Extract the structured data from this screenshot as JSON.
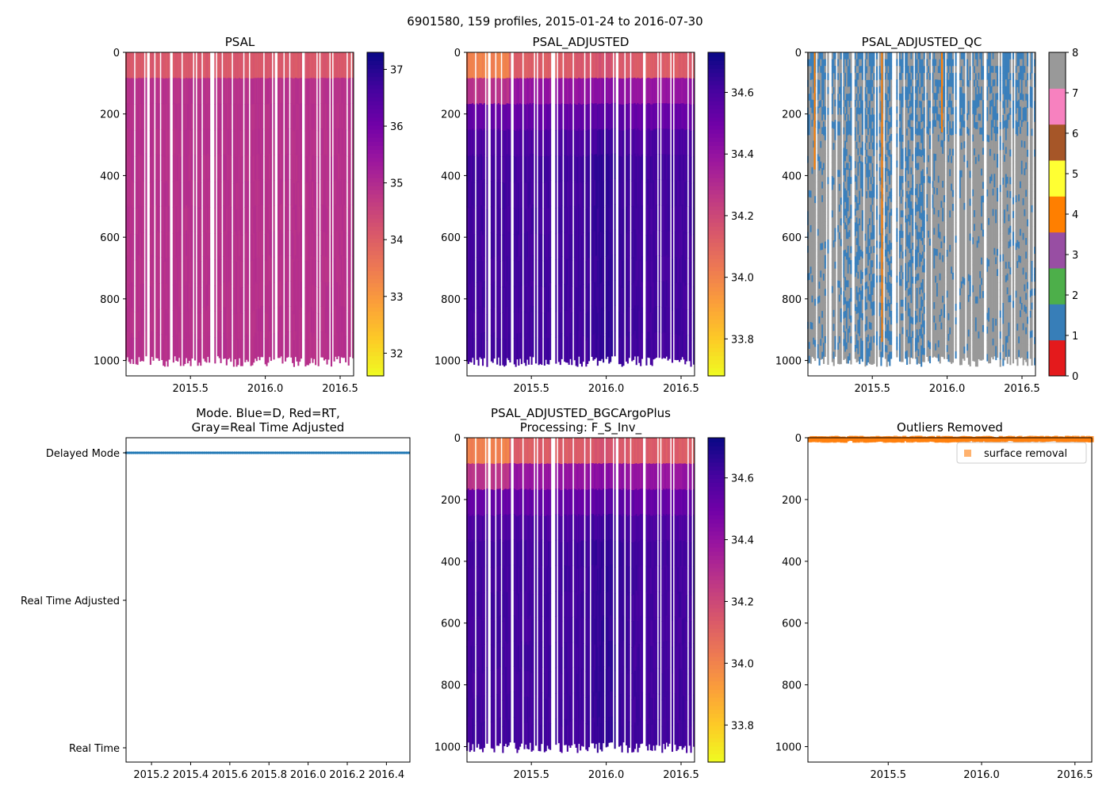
{
  "figure": {
    "suptitle": "6901580, 159 profiles, 2015-01-24 to 2016-07-30"
  },
  "colors": {
    "plasma": [
      "#0d0887",
      "#46039f",
      "#7201a8",
      "#9c179e",
      "#bd3786",
      "#d8576b",
      "#ed7953",
      "#fb9f3a",
      "#fdca26",
      "#f0f921"
    ],
    "qc": [
      "#e41a1c",
      "#377eb8",
      "#4daf4a",
      "#984ea3",
      "#ff7f00",
      "#ffff33",
      "#a65628",
      "#f781bf",
      "#999999"
    ],
    "qc_good": "#3a7fbb",
    "qc_missing": "#999999",
    "mode_dot": "#1f77b4",
    "outlier": "#ff7f0e"
  },
  "chart_data": [
    {
      "id": "psal",
      "type": "heatmap",
      "title": "PSAL",
      "xlim": [
        2015.07,
        2016.59
      ],
      "ylim": [
        1050,
        0
      ],
      "xticks": [
        "2015.5",
        "2016.0",
        "2016.5"
      ],
      "xtick_values": [
        2015.5,
        2016.0,
        2016.5
      ],
      "yticks": [
        "0",
        "200",
        "400",
        "600",
        "800",
        "1000"
      ],
      "ytick_values": [
        0,
        200,
        400,
        600,
        800,
        1000
      ],
      "colorbar": {
        "min": 31.6,
        "max": 37.3,
        "cmap": "plasma_r",
        "ticks": [
          "32",
          "33",
          "34",
          "35",
          "36",
          "37"
        ],
        "tick_values": [
          32,
          33,
          34,
          35,
          36,
          37
        ]
      },
      "surface_value": 33.7,
      "deep_value": 34.9,
      "max_depth": 1000
    },
    {
      "id": "psal_adj",
      "type": "heatmap",
      "title": "PSAL_ADJUSTED",
      "xlim": [
        2015.07,
        2016.59
      ],
      "ylim": [
        1050,
        0
      ],
      "xticks": [
        "2015.5",
        "2016.0",
        "2016.5"
      ],
      "xtick_values": [
        2015.5,
        2016.0,
        2016.5
      ],
      "yticks": [
        "0",
        "200",
        "400",
        "600",
        "800",
        "1000"
      ],
      "ytick_values": [
        0,
        200,
        400,
        600,
        800,
        1000
      ],
      "colorbar": {
        "min": 33.68,
        "max": 34.73,
        "cmap": "plasma_r",
        "ticks": [
          "33.8",
          "34.0",
          "34.2",
          "34.4",
          "34.6"
        ],
        "tick_values": [
          33.8,
          34.0,
          34.2,
          34.4,
          34.6
        ]
      },
      "surface_value": 33.9,
      "deep_value": 34.62,
      "max_depth": 1000
    },
    {
      "id": "psal_qc",
      "type": "heatmap",
      "title": "PSAL_ADJUSTED_QC",
      "xlim": [
        2015.07,
        2016.59
      ],
      "ylim": [
        1050,
        0
      ],
      "xticks": [
        "2015.5",
        "2016.0",
        "2016.5"
      ],
      "xtick_values": [
        2015.5,
        2016.0,
        2016.5
      ],
      "yticks": [
        "0",
        "200",
        "400",
        "600",
        "800",
        "1000"
      ],
      "ytick_values": [
        0,
        200,
        400,
        600,
        800,
        1000
      ],
      "colorbar": {
        "min": 0,
        "max": 8,
        "cmap": "qc",
        "ticks": [
          "0",
          "1",
          "2",
          "3",
          "4",
          "5",
          "6",
          "7",
          "8"
        ],
        "tick_values": [
          0,
          1,
          2,
          3,
          4,
          5,
          6,
          7,
          8
        ]
      },
      "upper_good_depth": 260,
      "max_depth": 1000
    },
    {
      "id": "mode",
      "type": "scatter",
      "title": [
        "Mode. Blue=D, Red=RT,",
        "Gray=Real Time Adjusted"
      ],
      "xlim": [
        2015.07,
        2016.52
      ],
      "ylim": [
        0,
        2
      ],
      "xticks": [
        "2015.2",
        "2015.4",
        "2015.6",
        "2015.8",
        "2016.0",
        "2016.2",
        "2016.4"
      ],
      "xtick_values": [
        2015.2,
        2015.4,
        2015.6,
        2015.8,
        2016.0,
        2016.2,
        2016.4
      ],
      "yticks": [
        "Real Time",
        "Real Time Adjusted",
        "Delayed Mode"
      ],
      "ytick_values": [
        0,
        1,
        2
      ],
      "series": [
        {
          "name": "Delayed Mode",
          "y": 2,
          "x_start": 2015.07,
          "x_end": 2016.58,
          "count": 159
        }
      ]
    },
    {
      "id": "psal_bgc",
      "type": "heatmap",
      "title": [
        "PSAL_ADJUSTED_BGCArgoPlus",
        "Processing: F_S_Inv_"
      ],
      "xlim": [
        2015.07,
        2016.59
      ],
      "ylim": [
        1050,
        0
      ],
      "xticks": [
        "2015.5",
        "2016.0",
        "2016.5"
      ],
      "xtick_values": [
        2015.5,
        2016.0,
        2016.5
      ],
      "yticks": [
        "0",
        "200",
        "400",
        "600",
        "800",
        "1000"
      ],
      "ytick_values": [
        0,
        200,
        400,
        600,
        800,
        1000
      ],
      "colorbar": {
        "min": 33.68,
        "max": 34.73,
        "cmap": "plasma_r",
        "ticks": [
          "33.8",
          "34.0",
          "34.2",
          "34.4",
          "34.6"
        ],
        "tick_values": [
          33.8,
          34.0,
          34.2,
          34.4,
          34.6
        ]
      },
      "surface_value": 33.9,
      "deep_value": 34.62,
      "max_depth": 1000
    },
    {
      "id": "outliers",
      "type": "scatter",
      "title": "Outliers Removed",
      "xlim": [
        2015.07,
        2016.59
      ],
      "ylim": [
        1050,
        0
      ],
      "xticks": [
        "2015.5",
        "2016.0",
        "2016.5"
      ],
      "xtick_values": [
        2015.5,
        2016.0,
        2016.5
      ],
      "yticks": [
        "0",
        "200",
        "400",
        "600",
        "800",
        "1000"
      ],
      "ytick_values": [
        0,
        200,
        400,
        600,
        800,
        1000
      ],
      "legend": {
        "label": "surface removal",
        "placement": "upper right"
      },
      "series": [
        {
          "name": "surface removal",
          "x_start": 2015.08,
          "x_end": 2016.59,
          "depth_min": 0,
          "depth_max": 10,
          "count": 159
        }
      ]
    }
  ]
}
